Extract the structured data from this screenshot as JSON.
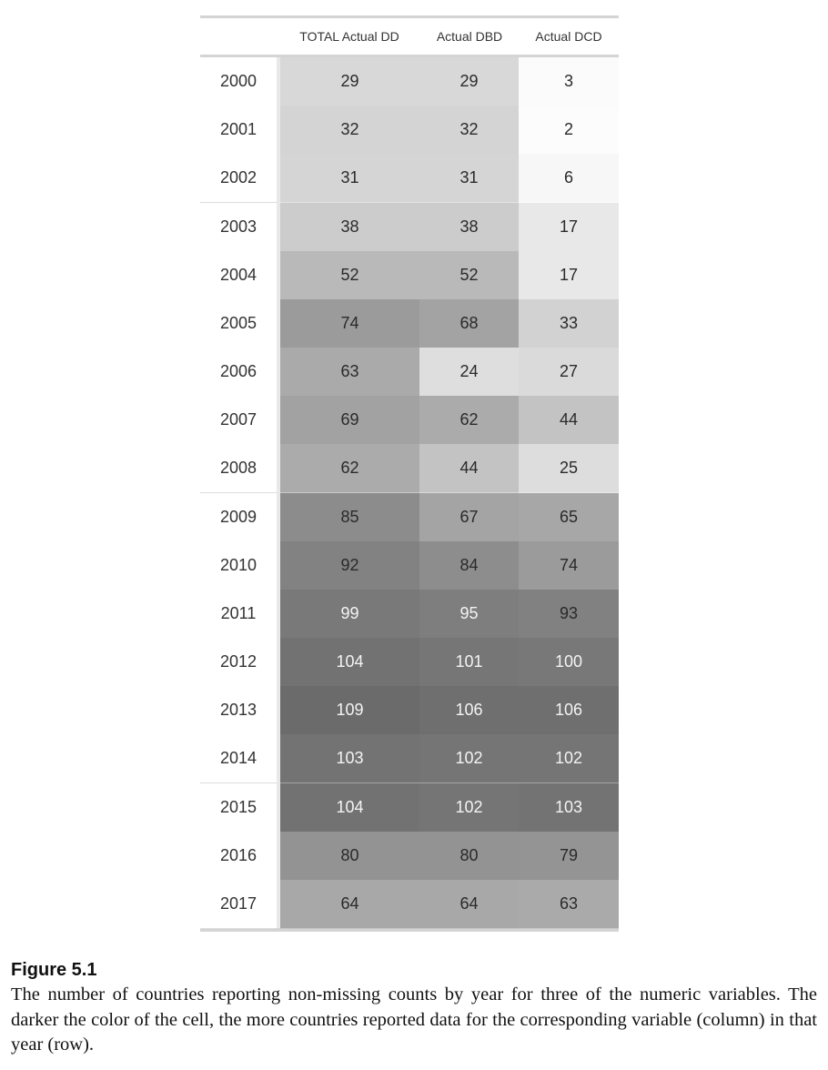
{
  "chart_data": {
    "type": "heatmap",
    "title": "",
    "columns": [
      "TOTAL Actual DD",
      "Actual DBD",
      "Actual DCD"
    ],
    "rows": [
      "2000",
      "2001",
      "2002",
      "2003",
      "2004",
      "2005",
      "2006",
      "2007",
      "2008",
      "2009",
      "2010",
      "2011",
      "2012",
      "2013",
      "2014",
      "2015",
      "2016",
      "2017"
    ],
    "values": [
      [
        29,
        29,
        3
      ],
      [
        32,
        32,
        2
      ],
      [
        31,
        31,
        6
      ],
      [
        38,
        38,
        17
      ],
      [
        52,
        52,
        17
      ],
      [
        74,
        68,
        33
      ],
      [
        63,
        24,
        27
      ],
      [
        69,
        62,
        44
      ],
      [
        62,
        44,
        25
      ],
      [
        85,
        67,
        65
      ],
      [
        92,
        84,
        74
      ],
      [
        99,
        95,
        93
      ],
      [
        104,
        101,
        100
      ],
      [
        109,
        106,
        106
      ],
      [
        103,
        102,
        102
      ],
      [
        104,
        102,
        103
      ],
      [
        80,
        80,
        79
      ],
      [
        64,
        64,
        63
      ]
    ],
    "color_scale": {
      "low": "#ffffff",
      "high": "#6a6a6a",
      "domain": [
        0,
        110
      ],
      "colors_by_column": true
    }
  },
  "figure": {
    "label": "Figure  5.1",
    "caption": "The number of countries reporting non-missing counts by year for three of the numeric variables. The darker the color of the cell, the more countries reported data for the corresponding variable (column) in that year (row)."
  }
}
